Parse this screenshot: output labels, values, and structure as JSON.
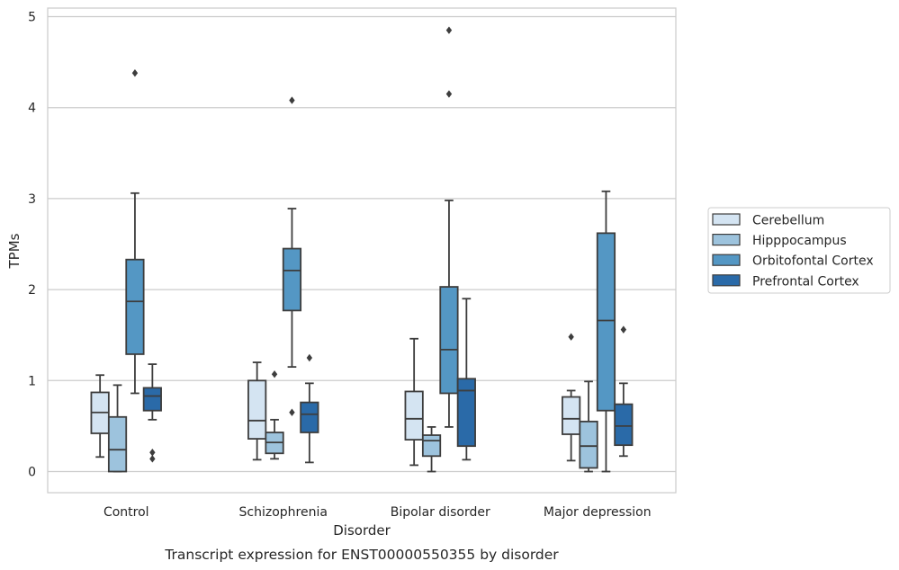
{
  "chart_data": {
    "type": "box",
    "title": "",
    "xlabel": "Disorder",
    "ylabel": "TPMs",
    "caption": "Transcript expression for ENST00000550355 by disorder",
    "categories": [
      "Control",
      "Schizophrenia",
      "Bipolar disorder",
      "Major depression"
    ],
    "ylim": [
      -0.23,
      5.1
    ],
    "yticks": [
      0,
      1,
      2,
      3,
      4,
      5
    ],
    "grid": "horizontal",
    "legend_position": "right",
    "series": [
      {
        "name": "Cerebellum",
        "color": "#d4e4f2",
        "boxes": [
          {
            "whislo": 0.16,
            "q1": 0.42,
            "med": 0.65,
            "q3": 0.87,
            "whishi": 1.06,
            "fliers": []
          },
          {
            "whislo": 0.13,
            "q1": 0.36,
            "med": 0.56,
            "q3": 1.0,
            "whishi": 1.2,
            "fliers": []
          },
          {
            "whislo": 0.07,
            "q1": 0.35,
            "med": 0.58,
            "q3": 0.88,
            "whishi": 1.46,
            "fliers": []
          },
          {
            "whislo": 0.12,
            "q1": 0.41,
            "med": 0.58,
            "q3": 0.82,
            "whishi": 0.89,
            "fliers": [
              1.48
            ]
          }
        ]
      },
      {
        "name": "Hipppocampus",
        "color": "#9dc3dd",
        "boxes": [
          {
            "whislo": 0.0,
            "q1": 0.0,
            "med": 0.24,
            "q3": 0.6,
            "whishi": 0.95,
            "fliers": []
          },
          {
            "whislo": 0.14,
            "q1": 0.2,
            "med": 0.32,
            "q3": 0.43,
            "whishi": 0.57,
            "fliers": [
              1.07
            ]
          },
          {
            "whislo": 0.0,
            "q1": 0.17,
            "med": 0.34,
            "q3": 0.4,
            "whishi": 0.49,
            "fliers": []
          },
          {
            "whislo": 0.0,
            "q1": 0.04,
            "med": 0.28,
            "q3": 0.55,
            "whishi": 0.99,
            "fliers": []
          }
        ]
      },
      {
        "name": "Orbitofontal Cortex",
        "color": "#5497c4",
        "boxes": [
          {
            "whislo": 0.86,
            "q1": 1.29,
            "med": 1.87,
            "q3": 2.33,
            "whishi": 3.06,
            "fliers": [
              4.38
            ]
          },
          {
            "whislo": 1.15,
            "q1": 1.77,
            "med": 2.21,
            "q3": 2.45,
            "whishi": 2.89,
            "fliers": [
              4.08,
              0.65
            ]
          },
          {
            "whislo": 0.49,
            "q1": 0.86,
            "med": 1.34,
            "q3": 2.03,
            "whishi": 2.98,
            "fliers": [
              4.85,
              4.15
            ]
          },
          {
            "whislo": 0.0,
            "q1": 0.67,
            "med": 1.66,
            "q3": 2.62,
            "whishi": 3.08,
            "fliers": []
          }
        ]
      },
      {
        "name": "Prefrontal Cortex",
        "color": "#2a6aa8",
        "boxes": [
          {
            "whislo": 0.57,
            "q1": 0.67,
            "med": 0.83,
            "q3": 0.92,
            "whishi": 1.18,
            "fliers": [
              0.21,
              0.14
            ]
          },
          {
            "whislo": 0.1,
            "q1": 0.43,
            "med": 0.63,
            "q3": 0.76,
            "whishi": 0.97,
            "fliers": [
              1.25
            ]
          },
          {
            "whislo": 0.13,
            "q1": 0.28,
            "med": 0.89,
            "q3": 1.02,
            "whishi": 1.9,
            "fliers": []
          },
          {
            "whislo": 0.17,
            "q1": 0.29,
            "med": 0.5,
            "q3": 0.74,
            "whishi": 0.97,
            "fliers": [
              1.56
            ]
          }
        ]
      }
    ]
  }
}
